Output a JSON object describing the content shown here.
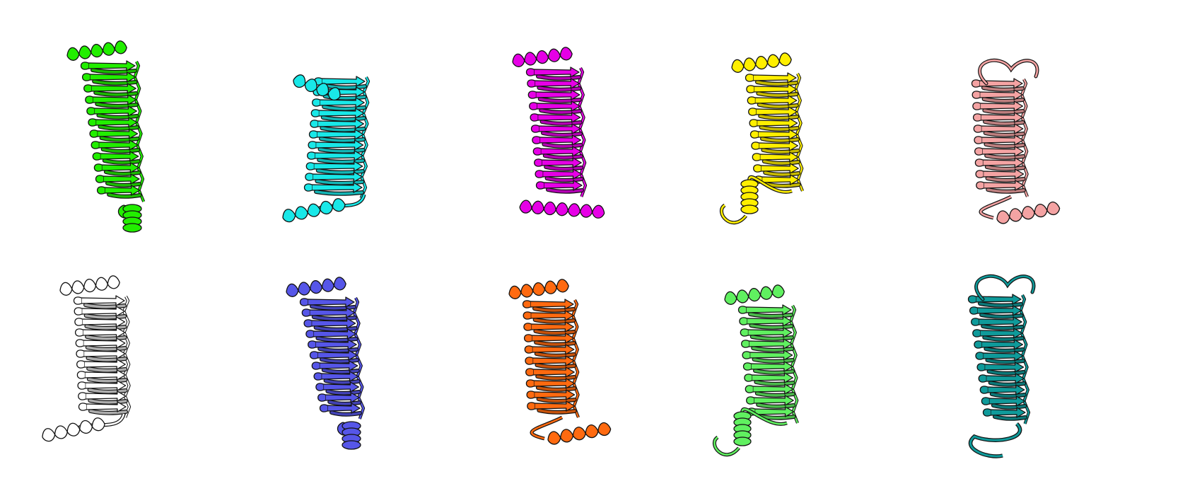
{
  "panels": [
    {
      "id": "r1c1",
      "color": "#22ee00",
      "kind": "green"
    },
    {
      "id": "r1c2",
      "color": "#19e8e8",
      "kind": "cyan"
    },
    {
      "id": "r1c3",
      "color": "#e600e6",
      "kind": "magenta"
    },
    {
      "id": "r1c4",
      "color": "#ffef00",
      "kind": "yellow"
    },
    {
      "id": "r1c5",
      "color": "#f4a3a3",
      "kind": "salmon"
    },
    {
      "id": "r2c1",
      "color": "#ffffff",
      "kind": "white"
    },
    {
      "id": "r2c2",
      "color": "#5656e8",
      "kind": "slate-blue"
    },
    {
      "id": "r2c3",
      "color": "#ff6a10",
      "kind": "orange"
    },
    {
      "id": "r2c4",
      "color": "#60f060",
      "kind": "light-green"
    },
    {
      "id": "r2c5",
      "color": "#0f9a9a",
      "kind": "teal"
    }
  ]
}
